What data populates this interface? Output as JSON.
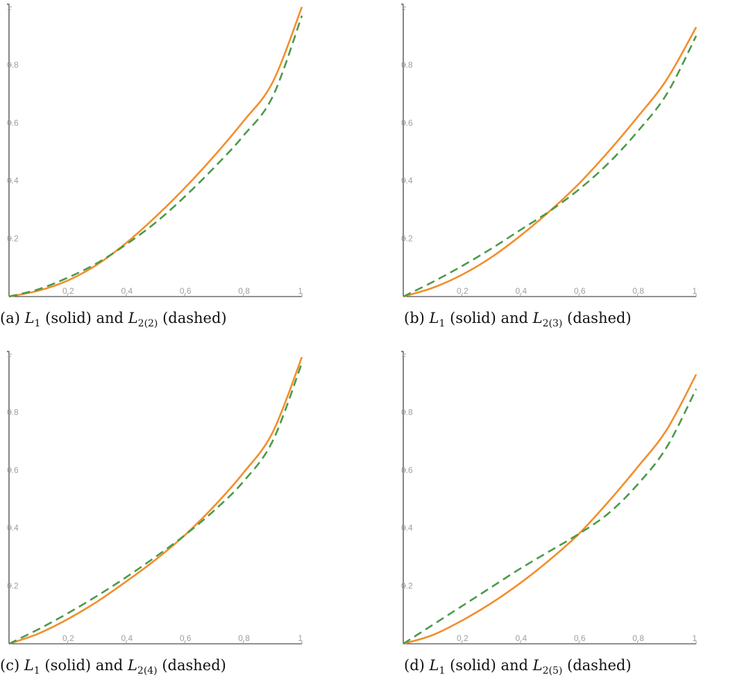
{
  "panels": [
    {
      "caption": {
        "tag": "(a)",
        "l1": "L",
        "l1_sub": "1",
        "mid": "(solid) and",
        "l2": "L",
        "l2_sub": "2(2)",
        "tail": "(dashed)"
      },
      "chart_data": {
        "type": "line",
        "xlim": [
          0,
          1
        ],
        "ylim": [
          0,
          1
        ],
        "x_ticks": [
          0.2,
          0.4,
          0.6,
          0.8,
          1
        ],
        "y_ticks": [
          0.2,
          0.4,
          0.6,
          0.8,
          1
        ],
        "x_tick_labels": [
          "0.2",
          "0.4",
          "0.6",
          "0.8",
          "1"
        ],
        "y_tick_labels": [
          "0.2",
          "0.4",
          "0.6",
          "0.8",
          "1"
        ],
        "series": [
          {
            "style": "solid",
            "color": "#f28e2b",
            "x": [
              0,
              0.1,
              0.2,
              0.3,
              0.4,
              0.5,
              0.6,
              0.7,
              0.8,
              0.9,
              1.0
            ],
            "y": [
              0,
              0.02,
              0.055,
              0.11,
              0.185,
              0.275,
              0.375,
              0.485,
              0.605,
              0.74,
              1.0
            ]
          },
          {
            "style": "dashed",
            "color": "#4a9a4a",
            "x": [
              0,
              0.1,
              0.2,
              0.3,
              0.4,
              0.5,
              0.6,
              0.7,
              0.8,
              0.9,
              1.0
            ],
            "y": [
              0,
              0.025,
              0.065,
              0.115,
              0.18,
              0.255,
              0.345,
              0.445,
              0.555,
              0.69,
              0.97
            ]
          }
        ]
      }
    },
    {
      "caption": {
        "tag": "(b)",
        "l1": "L",
        "l1_sub": "1",
        "mid": "(solid) and",
        "l2": "L",
        "l2_sub": "2(3)",
        "tail": "(dashed)"
      },
      "chart_data": {
        "type": "line",
        "xlim": [
          0,
          1
        ],
        "ylim": [
          0,
          1
        ],
        "x_ticks": [
          0.2,
          0.4,
          0.6,
          0.8,
          1
        ],
        "y_ticks": [
          0.2,
          0.4,
          0.6,
          0.8,
          1
        ],
        "x_tick_labels": [
          "0.2",
          "0.4",
          "0.6",
          "0.8",
          "1"
        ],
        "y_tick_labels": [
          "0.2",
          "0.4",
          "0.6",
          "0.8",
          "1"
        ],
        "series": [
          {
            "style": "solid",
            "color": "#f28e2b",
            "x": [
              0,
              0.1,
              0.2,
              0.3,
              0.4,
              0.5,
              0.6,
              0.7,
              0.8,
              0.9,
              1.0
            ],
            "y": [
              0,
              0.03,
              0.075,
              0.135,
              0.21,
              0.295,
              0.39,
              0.5,
              0.62,
              0.75,
              0.93
            ]
          },
          {
            "style": "dashed",
            "color": "#4a9a4a",
            "x": [
              0,
              0.1,
              0.2,
              0.3,
              0.4,
              0.5,
              0.6,
              0.7,
              0.8,
              0.9,
              1.0
            ],
            "y": [
              0,
              0.05,
              0.105,
              0.165,
              0.23,
              0.295,
              0.37,
              0.46,
              0.57,
              0.7,
              0.9
            ]
          }
        ]
      }
    },
    {
      "caption": {
        "tag": "(c)",
        "l1": "L",
        "l1_sub": "1",
        "mid": "(solid) and",
        "l2": "L",
        "l2_sub": "2(4)",
        "tail": "(dashed)"
      },
      "chart_data": {
        "type": "line",
        "xlim": [
          0,
          1
        ],
        "ylim": [
          0,
          1
        ],
        "x_ticks": [
          0.2,
          0.4,
          0.6,
          0.8,
          1
        ],
        "y_ticks": [
          0.2,
          0.4,
          0.6,
          0.8,
          1
        ],
        "x_tick_labels": [
          "0.2",
          "0.4",
          "0.6",
          "0.8",
          "1"
        ],
        "y_tick_labels": [
          "0.2",
          "0.4",
          "0.6",
          "0.8",
          "1"
        ],
        "series": [
          {
            "style": "solid",
            "color": "#f28e2b",
            "x": [
              0,
              0.1,
              0.2,
              0.3,
              0.4,
              0.5,
              0.6,
              0.7,
              0.8,
              0.9,
              1.0
            ],
            "y": [
              0,
              0.035,
              0.085,
              0.145,
              0.215,
              0.29,
              0.375,
              0.475,
              0.59,
              0.73,
              0.99
            ]
          },
          {
            "style": "dashed",
            "color": "#4a9a4a",
            "x": [
              0,
              0.1,
              0.2,
              0.3,
              0.4,
              0.5,
              0.6,
              0.7,
              0.8,
              0.9,
              1.0
            ],
            "y": [
              0,
              0.05,
              0.105,
              0.165,
              0.23,
              0.3,
              0.375,
              0.46,
              0.56,
              0.7,
              0.97
            ]
          }
        ]
      }
    },
    {
      "caption": {
        "tag": "(d)",
        "l1": "L",
        "l1_sub": "1",
        "mid": "(solid) and",
        "l2": "L",
        "l2_sub": "2(5)",
        "tail": "(dashed)"
      },
      "chart_data": {
        "type": "line",
        "xlim": [
          0,
          1
        ],
        "ylim": [
          0,
          1
        ],
        "x_ticks": [
          0.2,
          0.4,
          0.6,
          0.8,
          1
        ],
        "y_ticks": [
          0.2,
          0.4,
          0.6,
          0.8,
          1
        ],
        "x_tick_labels": [
          "0.2",
          "0.4",
          "0.6",
          "0.8",
          "1"
        ],
        "y_tick_labels": [
          "0.2",
          "0.4",
          "0.6",
          "0.8",
          "1"
        ],
        "series": [
          {
            "style": "solid",
            "color": "#f28e2b",
            "x": [
              0,
              0.1,
              0.2,
              0.3,
              0.4,
              0.5,
              0.6,
              0.7,
              0.8,
              0.9,
              1.0
            ],
            "y": [
              0,
              0.03,
              0.08,
              0.14,
              0.21,
              0.29,
              0.38,
              0.49,
              0.61,
              0.74,
              0.93
            ]
          },
          {
            "style": "dashed",
            "color": "#4a9a4a",
            "x": [
              0,
              0.1,
              0.2,
              0.3,
              0.4,
              0.5,
              0.6,
              0.7,
              0.8,
              0.9,
              1.0
            ],
            "y": [
              0,
              0.065,
              0.13,
              0.195,
              0.26,
              0.32,
              0.38,
              0.45,
              0.55,
              0.68,
              0.88
            ]
          }
        ]
      }
    }
  ]
}
